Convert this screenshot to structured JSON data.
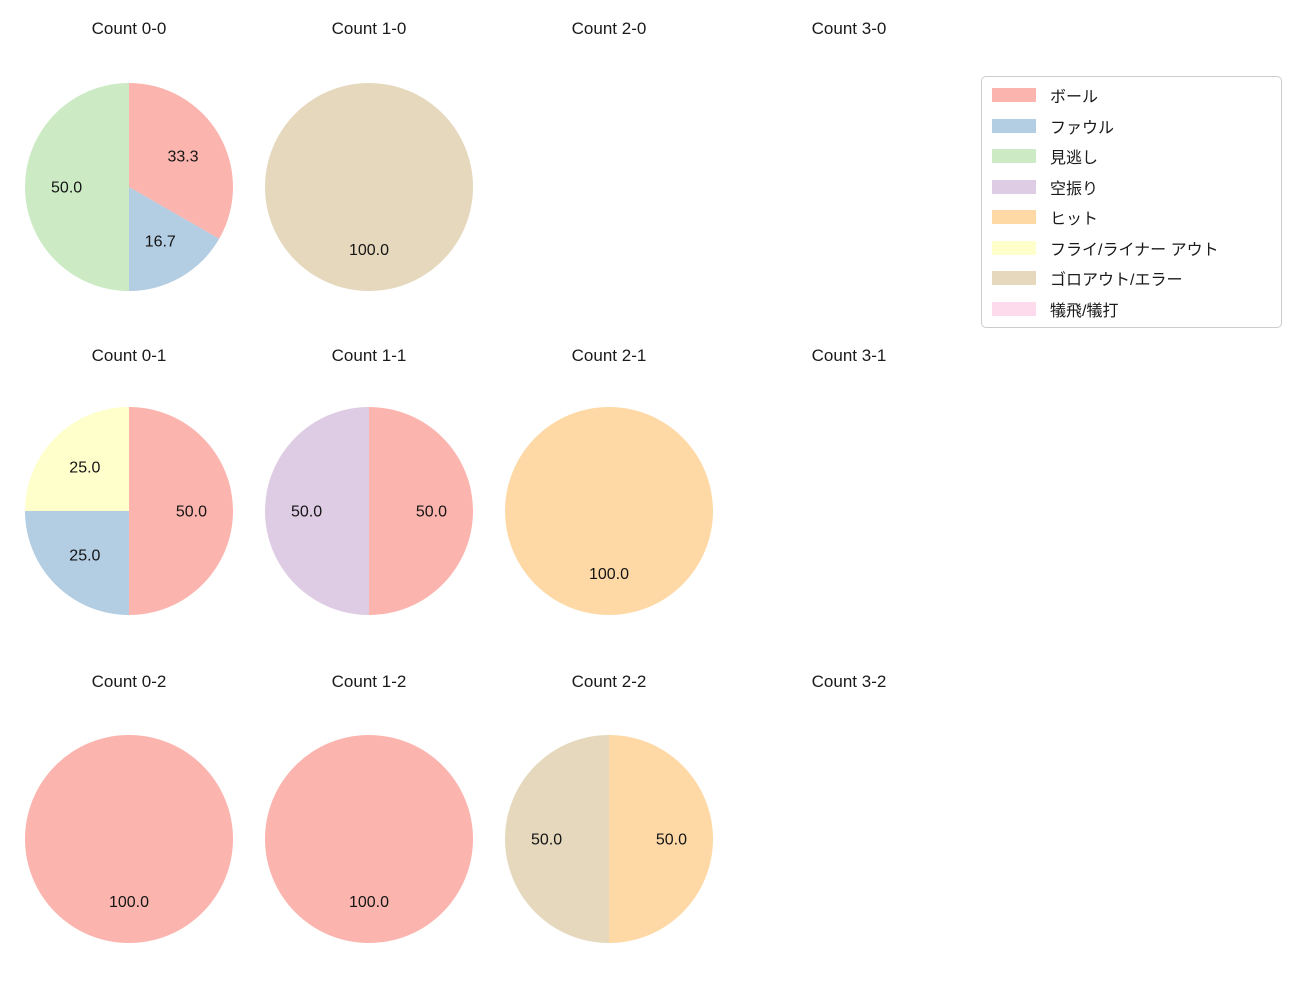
{
  "figure": {
    "background": "#ffffff",
    "text_color": "#1a1a1a"
  },
  "legend": {
    "items": [
      {
        "label": "ボール",
        "color": "#fbb4ae"
      },
      {
        "label": "ファウル",
        "color": "#b3cde3"
      },
      {
        "label": "見逃し",
        "color": "#ccebc5"
      },
      {
        "label": "空振り",
        "color": "#decbe4"
      },
      {
        "label": "ヒット",
        "color": "#fed9a6"
      },
      {
        "label": "フライ/ライナー アウト",
        "color": "#ffffcc"
      },
      {
        "label": "ゴロアウト/エラー",
        "color": "#e5d8bd"
      },
      {
        "label": "犠飛/犠打",
        "color": "#fddaec"
      }
    ]
  },
  "chart_data": [
    {
      "type": "pie",
      "title": "Count 0-0",
      "start_angle": 90,
      "direction": "clockwise",
      "pct_distance": 0.6,
      "slices": [
        {
          "label": "ボール",
          "value": 33.3,
          "pct_label": "33.3",
          "color": "#fbb4ae"
        },
        {
          "label": "ファウル",
          "value": 16.7,
          "pct_label": "16.7",
          "color": "#b3cde3"
        },
        {
          "label": "見逃し",
          "value": 50.0,
          "pct_label": "50.0",
          "color": "#ccebc5"
        }
      ]
    },
    {
      "type": "pie",
      "title": "Count 1-0",
      "start_angle": 90,
      "direction": "clockwise",
      "pct_distance": 0.6,
      "slices": [
        {
          "label": "ゴロアウト/エラー",
          "value": 100.0,
          "pct_label": "100.0",
          "color": "#e5d8bd"
        }
      ]
    },
    {
      "type": "pie",
      "title": "Count 2-0",
      "start_angle": 90,
      "direction": "clockwise",
      "pct_distance": 0.6,
      "slices": []
    },
    {
      "type": "pie",
      "title": "Count 3-0",
      "start_angle": 90,
      "direction": "clockwise",
      "pct_distance": 0.6,
      "slices": []
    },
    {
      "type": "pie",
      "title": "Count 0-1",
      "start_angle": 90,
      "direction": "clockwise",
      "pct_distance": 0.6,
      "slices": [
        {
          "label": "ボール",
          "value": 50.0,
          "pct_label": "50.0",
          "color": "#fbb4ae"
        },
        {
          "label": "ファウル",
          "value": 25.0,
          "pct_label": "25.0",
          "color": "#b3cde3"
        },
        {
          "label": "フライ/ライナー アウト",
          "value": 25.0,
          "pct_label": "25.0",
          "color": "#ffffcc"
        }
      ]
    },
    {
      "type": "pie",
      "title": "Count 1-1",
      "start_angle": 90,
      "direction": "clockwise",
      "pct_distance": 0.6,
      "slices": [
        {
          "label": "ボール",
          "value": 50.0,
          "pct_label": "50.0",
          "color": "#fbb4ae"
        },
        {
          "label": "空振り",
          "value": 50.0,
          "pct_label": "50.0",
          "color": "#decbe4"
        }
      ]
    },
    {
      "type": "pie",
      "title": "Count 2-1",
      "start_angle": 90,
      "direction": "clockwise",
      "pct_distance": 0.6,
      "slices": [
        {
          "label": "ヒット",
          "value": 100.0,
          "pct_label": "100.0",
          "color": "#fed9a6"
        }
      ]
    },
    {
      "type": "pie",
      "title": "Count 3-1",
      "start_angle": 90,
      "direction": "clockwise",
      "pct_distance": 0.6,
      "slices": []
    },
    {
      "type": "pie",
      "title": "Count 0-2",
      "start_angle": 90,
      "direction": "clockwise",
      "pct_distance": 0.6,
      "slices": [
        {
          "label": "ボール",
          "value": 100.0,
          "pct_label": "100.0",
          "color": "#fbb4ae"
        }
      ]
    },
    {
      "type": "pie",
      "title": "Count 1-2",
      "start_angle": 90,
      "direction": "clockwise",
      "pct_distance": 0.6,
      "slices": [
        {
          "label": "ボール",
          "value": 100.0,
          "pct_label": "100.0",
          "color": "#fbb4ae"
        }
      ]
    },
    {
      "type": "pie",
      "title": "Count 2-2",
      "start_angle": 90,
      "direction": "clockwise",
      "pct_distance": 0.6,
      "slices": [
        {
          "label": "ヒット",
          "value": 50.0,
          "pct_label": "50.0",
          "color": "#fed9a6"
        },
        {
          "label": "ゴロアウト/エラー",
          "value": 50.0,
          "pct_label": "50.0",
          "color": "#e5d8bd"
        }
      ]
    },
    {
      "type": "pie",
      "title": "Count 3-2",
      "start_angle": 90,
      "direction": "clockwise",
      "pct_distance": 0.6,
      "slices": []
    }
  ]
}
